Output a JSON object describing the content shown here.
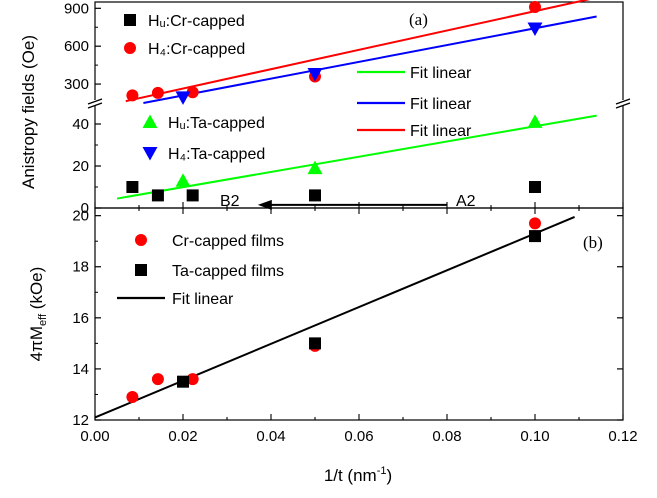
{
  "chart_data": [
    {
      "id": "a",
      "type": "scatter",
      "panel_label": "(a)",
      "ylabel": "Anistropy fields (Oe)",
      "x_range": [
        0,
        0.12
      ],
      "y_broken_axis": {
        "upper_range": [
          150,
          950
        ],
        "upper_ticks": [
          300,
          600,
          900
        ],
        "lower_range": [
          0,
          50
        ],
        "lower_ticks": [
          0,
          20,
          40
        ]
      },
      "grid": false,
      "legend_left": [
        {
          "label": "Hᵤ:Cr-capped",
          "color": "#000000",
          "marker": "square"
        },
        {
          "label": "H₄:Cr-capped",
          "color": "#ff0000",
          "marker": "circle"
        },
        {
          "label": "Hᵤ:Ta-capped",
          "color": "#00ff00",
          "marker": "triangle-up"
        },
        {
          "label": "H₄:Ta-capped",
          "color": "#0000ff",
          "marker": "triangle-down"
        }
      ],
      "legend_fit": [
        {
          "label": "Fit linear",
          "color": "#00ff00"
        },
        {
          "label": "Fit linear",
          "color": "#0000ff"
        },
        {
          "label": "Fit linear",
          "color": "#ff0000"
        }
      ],
      "series": [
        {
          "name": "Hu:Cr-capped",
          "color": "#000000",
          "marker": "square",
          "x": [
            0.0085,
            0.0143,
            0.0222,
            0.05,
            0.1
          ],
          "y": [
            10,
            6,
            6,
            6,
            10
          ]
        },
        {
          "name": "H4:Cr-capped",
          "color": "#ff0000",
          "marker": "circle",
          "x": [
            0.0085,
            0.0143,
            0.0222,
            0.05,
            0.1
          ],
          "y": [
            210,
            230,
            235,
            360,
            910
          ]
        },
        {
          "name": "Hu:Ta-capped",
          "color": "#00ff00",
          "marker": "triangle-up",
          "x": [
            0.02,
            0.05,
            0.1
          ],
          "y": [
            13,
            19,
            41
          ]
        },
        {
          "name": "H4:Ta-capped",
          "color": "#0000ff",
          "marker": "triangle-down",
          "x": [
            0.02,
            0.05,
            0.1
          ],
          "y": [
            195,
            380,
            740
          ]
        }
      ],
      "fits": [
        {
          "name": "Hu:Ta fit",
          "color": "#00ff00",
          "x": [
            0.005,
            0.114
          ],
          "y": [
            4.5,
            44
          ]
        },
        {
          "name": "H4:Ta fit",
          "color": "#0000ff",
          "x": [
            0.011,
            0.114
          ],
          "y": [
            150,
            835
          ]
        },
        {
          "name": "H4:Cr fit",
          "color": "#ff0000",
          "x": [
            0.007,
            0.114
          ],
          "y": [
            165,
            985
          ]
        }
      ],
      "annotations": [
        {
          "text": "A2",
          "x": 0.0865,
          "y": 5
        },
        {
          "text": "B2",
          "x": 0.0345,
          "y": 5
        }
      ],
      "arrow": {
        "from": [
          0.08,
          1.5
        ],
        "to": [
          0.037,
          1.5
        ]
      }
    },
    {
      "id": "b",
      "type": "scatter",
      "panel_label": "(b)",
      "xlabel": "1/t (nm⁻¹)",
      "ylabel": "4πM_eff (kOe)",
      "ylabel_parts": {
        "main": "4πM",
        "sub": "eff",
        "tail": " (kOe)"
      },
      "xlabel_parts": {
        "main": "1/t (nm",
        "sup": "-1",
        "tail": ")"
      },
      "xlim": [
        0,
        0.12
      ],
      "x_ticks": [
        "0.00",
        "0.02",
        "0.04",
        "0.06",
        "0.08",
        "0.10",
        "0.12"
      ],
      "ylim": [
        12,
        20.3
      ],
      "y_ticks": [
        12,
        14,
        16,
        18,
        20
      ],
      "grid": false,
      "legend": [
        {
          "label": "Cr-capped films",
          "color": "#ff0000",
          "marker": "circle"
        },
        {
          "label": "Ta-capped films",
          "color": "#000000",
          "marker": "square"
        },
        {
          "label": "Fit linear",
          "color": "#000000",
          "marker": "line"
        }
      ],
      "series": [
        {
          "name": "Cr-capped films",
          "color": "#ff0000",
          "marker": "circle",
          "x": [
            0.0085,
            0.0143,
            0.0222,
            0.05,
            0.1
          ],
          "y": [
            12.9,
            13.6,
            13.6,
            14.9,
            19.7
          ]
        },
        {
          "name": "Ta-capped films",
          "color": "#000000",
          "marker": "square",
          "x": [
            0.02,
            0.05,
            0.1
          ],
          "y": [
            13.5,
            15.0,
            19.2
          ]
        }
      ],
      "fits": [
        {
          "name": "Fit linear",
          "color": "#000000",
          "x": [
            0.0,
            0.109
          ],
          "y": [
            12.1,
            19.95
          ]
        }
      ]
    }
  ]
}
